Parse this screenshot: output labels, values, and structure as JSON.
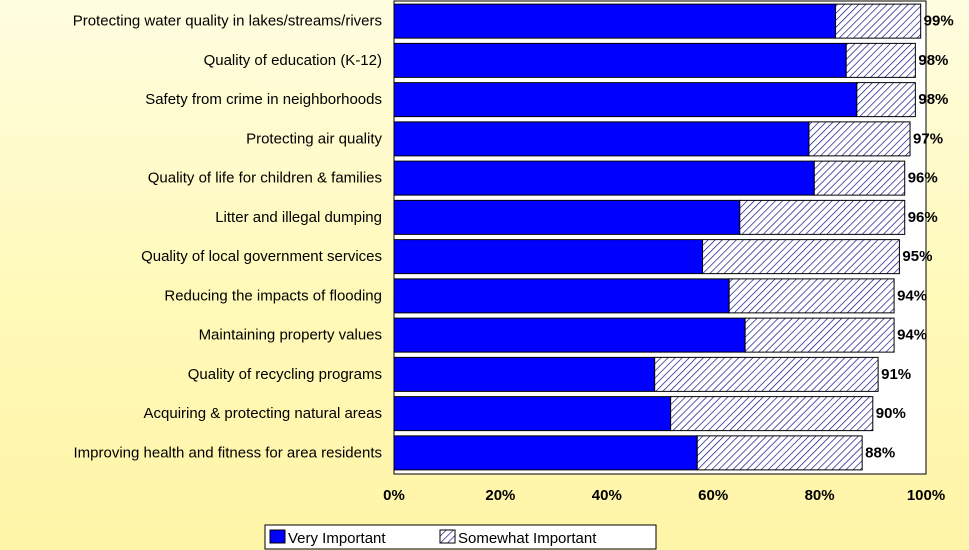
{
  "colors": {
    "very_important": "#0000ff",
    "somewhat_fill": "#ffffff",
    "somewhat_hatch": "#000080",
    "plot_background": "#ffffff",
    "page_background": "#fff9b8"
  },
  "chart_data": {
    "type": "bar",
    "orientation": "horizontal",
    "stacked": true,
    "categories": [
      "Protecting water quality in lakes/streams/rivers",
      "Quality of education (K-12)",
      "Safety from crime in neighborhoods",
      "Protecting air quality",
      "Quality of life for children & families",
      "Litter and illegal dumping",
      "Quality of local government services",
      "Reducing the impacts of flooding",
      "Maintaining property values",
      "Quality of recycling programs",
      "Acquiring & protecting natural areas",
      "Improving health and fitness for area residents"
    ],
    "series": [
      {
        "name": "Very Important",
        "values": [
          83,
          85,
          87,
          78,
          79,
          65,
          58,
          63,
          66,
          49,
          52,
          57
        ]
      },
      {
        "name": "Somewhat Important",
        "values": [
          16,
          13,
          11,
          19,
          17,
          31,
          37,
          31,
          28,
          42,
          38,
          31
        ]
      }
    ],
    "total_labels": [
      "99%",
      "98%",
      "98%",
      "97%",
      "96%",
      "96%",
      "95%",
      "94%",
      "94%",
      "91%",
      "90%",
      "88%"
    ],
    "x_ticks": [
      "0%",
      "20%",
      "40%",
      "60%",
      "80%",
      "100%"
    ],
    "xlim": [
      0,
      100
    ],
    "grid": false,
    "legend_position": "bottom"
  }
}
